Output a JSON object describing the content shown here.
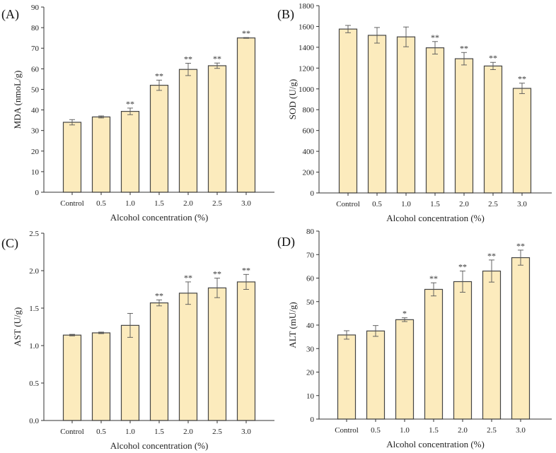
{
  "chart_data": [
    {
      "type": "bar",
      "panel_label": "(A)",
      "title": "",
      "xlabel": "Alcohol concentration (%)",
      "ylabel": "MDA (nmoL/g)",
      "categories": [
        "Control",
        "0.5",
        "1.0",
        "1.5",
        "2.0",
        "2.5",
        "3.0"
      ],
      "values": [
        34.0,
        36.6,
        39.3,
        52.0,
        59.7,
        61.5,
        75.0
      ],
      "errors": [
        1.3,
        0.5,
        1.6,
        2.5,
        3.0,
        1.3,
        0.2
      ],
      "significance": [
        "",
        "",
        "**",
        "**",
        "**",
        "**",
        "**"
      ],
      "ylim": [
        0,
        90
      ],
      "yticks": [
        0,
        10,
        20,
        30,
        40,
        50,
        60,
        70,
        80,
        90
      ],
      "ytick_labels": [
        "0",
        "10",
        "20",
        "30",
        "40",
        "50",
        "60",
        "70",
        "80",
        "90"
      ]
    },
    {
      "type": "bar",
      "panel_label": "(B)",
      "title": "",
      "xlabel": "Alcohol concentration (%)",
      "ylabel": "SOD (U/g)",
      "categories": [
        "Control",
        "0.5",
        "1.0",
        "1.5",
        "2.0",
        "2.5",
        "3.0"
      ],
      "values": [
        1575,
        1515,
        1500,
        1395,
        1290,
        1220,
        1005
      ],
      "errors": [
        35,
        75,
        95,
        60,
        60,
        35,
        50
      ],
      "significance": [
        "",
        "",
        "",
        "**",
        "**",
        "**",
        "**"
      ],
      "ylim": [
        0,
        1800
      ],
      "yticks": [
        0,
        200,
        400,
        600,
        800,
        1000,
        1200,
        1400,
        1600,
        1800
      ],
      "ytick_labels": [
        "0",
        "200",
        "400",
        "600",
        "800",
        "1000",
        "1200",
        "1400",
        "1600",
        "1800"
      ]
    },
    {
      "type": "bar",
      "panel_label": "(C)",
      "title": "",
      "xlabel": "Alcohol concentration (%)",
      "ylabel": "AST (U/g)",
      "categories": [
        "Control",
        "0.5",
        "1.0",
        "1.5",
        "2.0",
        "2.5",
        "3.0"
      ],
      "values": [
        1.14,
        1.17,
        1.27,
        1.57,
        1.7,
        1.77,
        1.85
      ],
      "errors": [
        0.01,
        0.01,
        0.16,
        0.04,
        0.15,
        0.13,
        0.1
      ],
      "significance": [
        "",
        "",
        "",
        "**",
        "**",
        "**",
        "**"
      ],
      "ylim": [
        0,
        2.5
      ],
      "yticks": [
        0,
        0.5,
        1.0,
        1.5,
        2.0,
        2.5
      ],
      "ytick_labels": [
        "0.0",
        "0.5",
        "1.0",
        "1.5",
        "2.0",
        "2.5"
      ]
    },
    {
      "type": "bar",
      "panel_label": "(D)",
      "title": "",
      "xlabel": "Alcohol concentration (%)",
      "ylabel": "ALT (mU/g)",
      "categories": [
        "Control",
        "0.5",
        "1.0",
        "1.5",
        "2.0",
        "2.5",
        "3.0"
      ],
      "values": [
        35.8,
        37.5,
        42.3,
        55.2,
        58.5,
        63.0,
        68.7
      ],
      "errors": [
        1.8,
        2.3,
        0.8,
        2.8,
        4.5,
        4.7,
        3.2
      ],
      "significance": [
        "",
        "",
        "*",
        "**",
        "**",
        "**",
        "**"
      ],
      "ylim": [
        0,
        80
      ],
      "yticks": [
        0,
        10,
        20,
        30,
        40,
        50,
        60,
        70,
        80
      ],
      "ytick_labels": [
        "0",
        "10",
        "20",
        "30",
        "40",
        "50",
        "60",
        "70",
        "80"
      ]
    }
  ],
  "colors": {
    "bar_fill": "#fcebbd",
    "bar_stroke": "#444444",
    "axis": "#333333",
    "error": "#555555"
  }
}
